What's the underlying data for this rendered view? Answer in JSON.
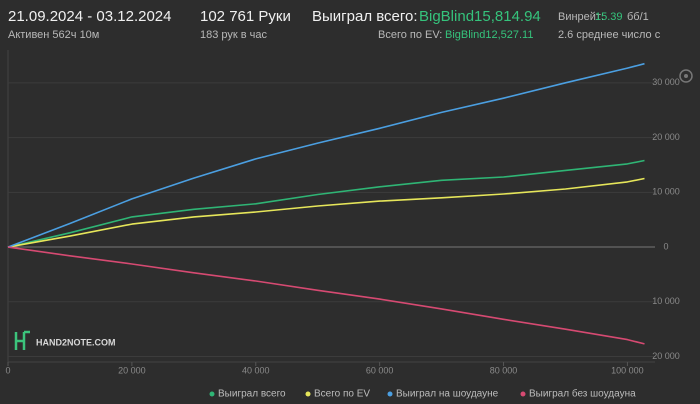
{
  "header": {
    "period": "21.09.2024 - 03.12.2024",
    "active": "Активен 562ч 10м",
    "hands": "102 761 Руки",
    "hands_per_hour": "183 рук в час",
    "won_label": "Выиграл всего:",
    "won_value": "BigBlind15,814.94",
    "ev_label": "Всего по EV:",
    "ev_value": "BigBlind12,527.11",
    "winrate_label": "Винрейт:",
    "winrate_value": "15.39",
    "winrate_unit": "бб/1",
    "avg_text": "2.6 среднее число с"
  },
  "logo": "HAND2NOTE.COM",
  "chart_data": {
    "type": "line",
    "x": [
      0,
      10000,
      20000,
      30000,
      40000,
      50000,
      60000,
      70000,
      80000,
      90000,
      100000,
      102761
    ],
    "series": [
      {
        "name": "Выиграл всего",
        "color": "#2fb575",
        "values": [
          0,
          2600,
          5500,
          6900,
          7900,
          9600,
          11000,
          12200,
          12800,
          14000,
          15200,
          15815
        ]
      },
      {
        "name": "Всего по EV",
        "color": "#e6e65a",
        "values": [
          0,
          2000,
          4200,
          5500,
          6400,
          7500,
          8400,
          9000,
          9700,
          10600,
          11900,
          12527
        ]
      },
      {
        "name": "Выиграл на шоудауне",
        "color": "#4b9fe1",
        "values": [
          0,
          4300,
          8800,
          12600,
          16100,
          19000,
          21700,
          24600,
          27200,
          30000,
          32700,
          33500
        ]
      },
      {
        "name": "Выиграл без шоудауна",
        "color": "#d64a72",
        "values": [
          0,
          -1600,
          -3100,
          -4700,
          -6200,
          -7900,
          -9500,
          -11300,
          -13200,
          -15000,
          -16900,
          -17700
        ]
      }
    ],
    "xlim": [
      0,
      103000
    ],
    "xticks": [
      0,
      {
        "value": 20000,
        "label": "20 000"
      },
      {
        "value": 40000,
        "label": "40 000"
      },
      {
        "value": 60000,
        "label": "60 000"
      },
      {
        "value": 80000,
        "label": "80 000"
      },
      {
        "value": 100000,
        "label": "100 000"
      }
    ],
    "ylim": [
      -21000,
      36000
    ],
    "yticks": [
      {
        "value": -20000,
        "label": "20 000"
      },
      {
        "value": -10000,
        "label": "10 000"
      },
      0,
      {
        "value": 10000,
        "label": "10 000"
      },
      {
        "value": 20000,
        "label": "20 000"
      },
      {
        "value": 30000,
        "label": "30 000"
      }
    ],
    "grid": true
  }
}
